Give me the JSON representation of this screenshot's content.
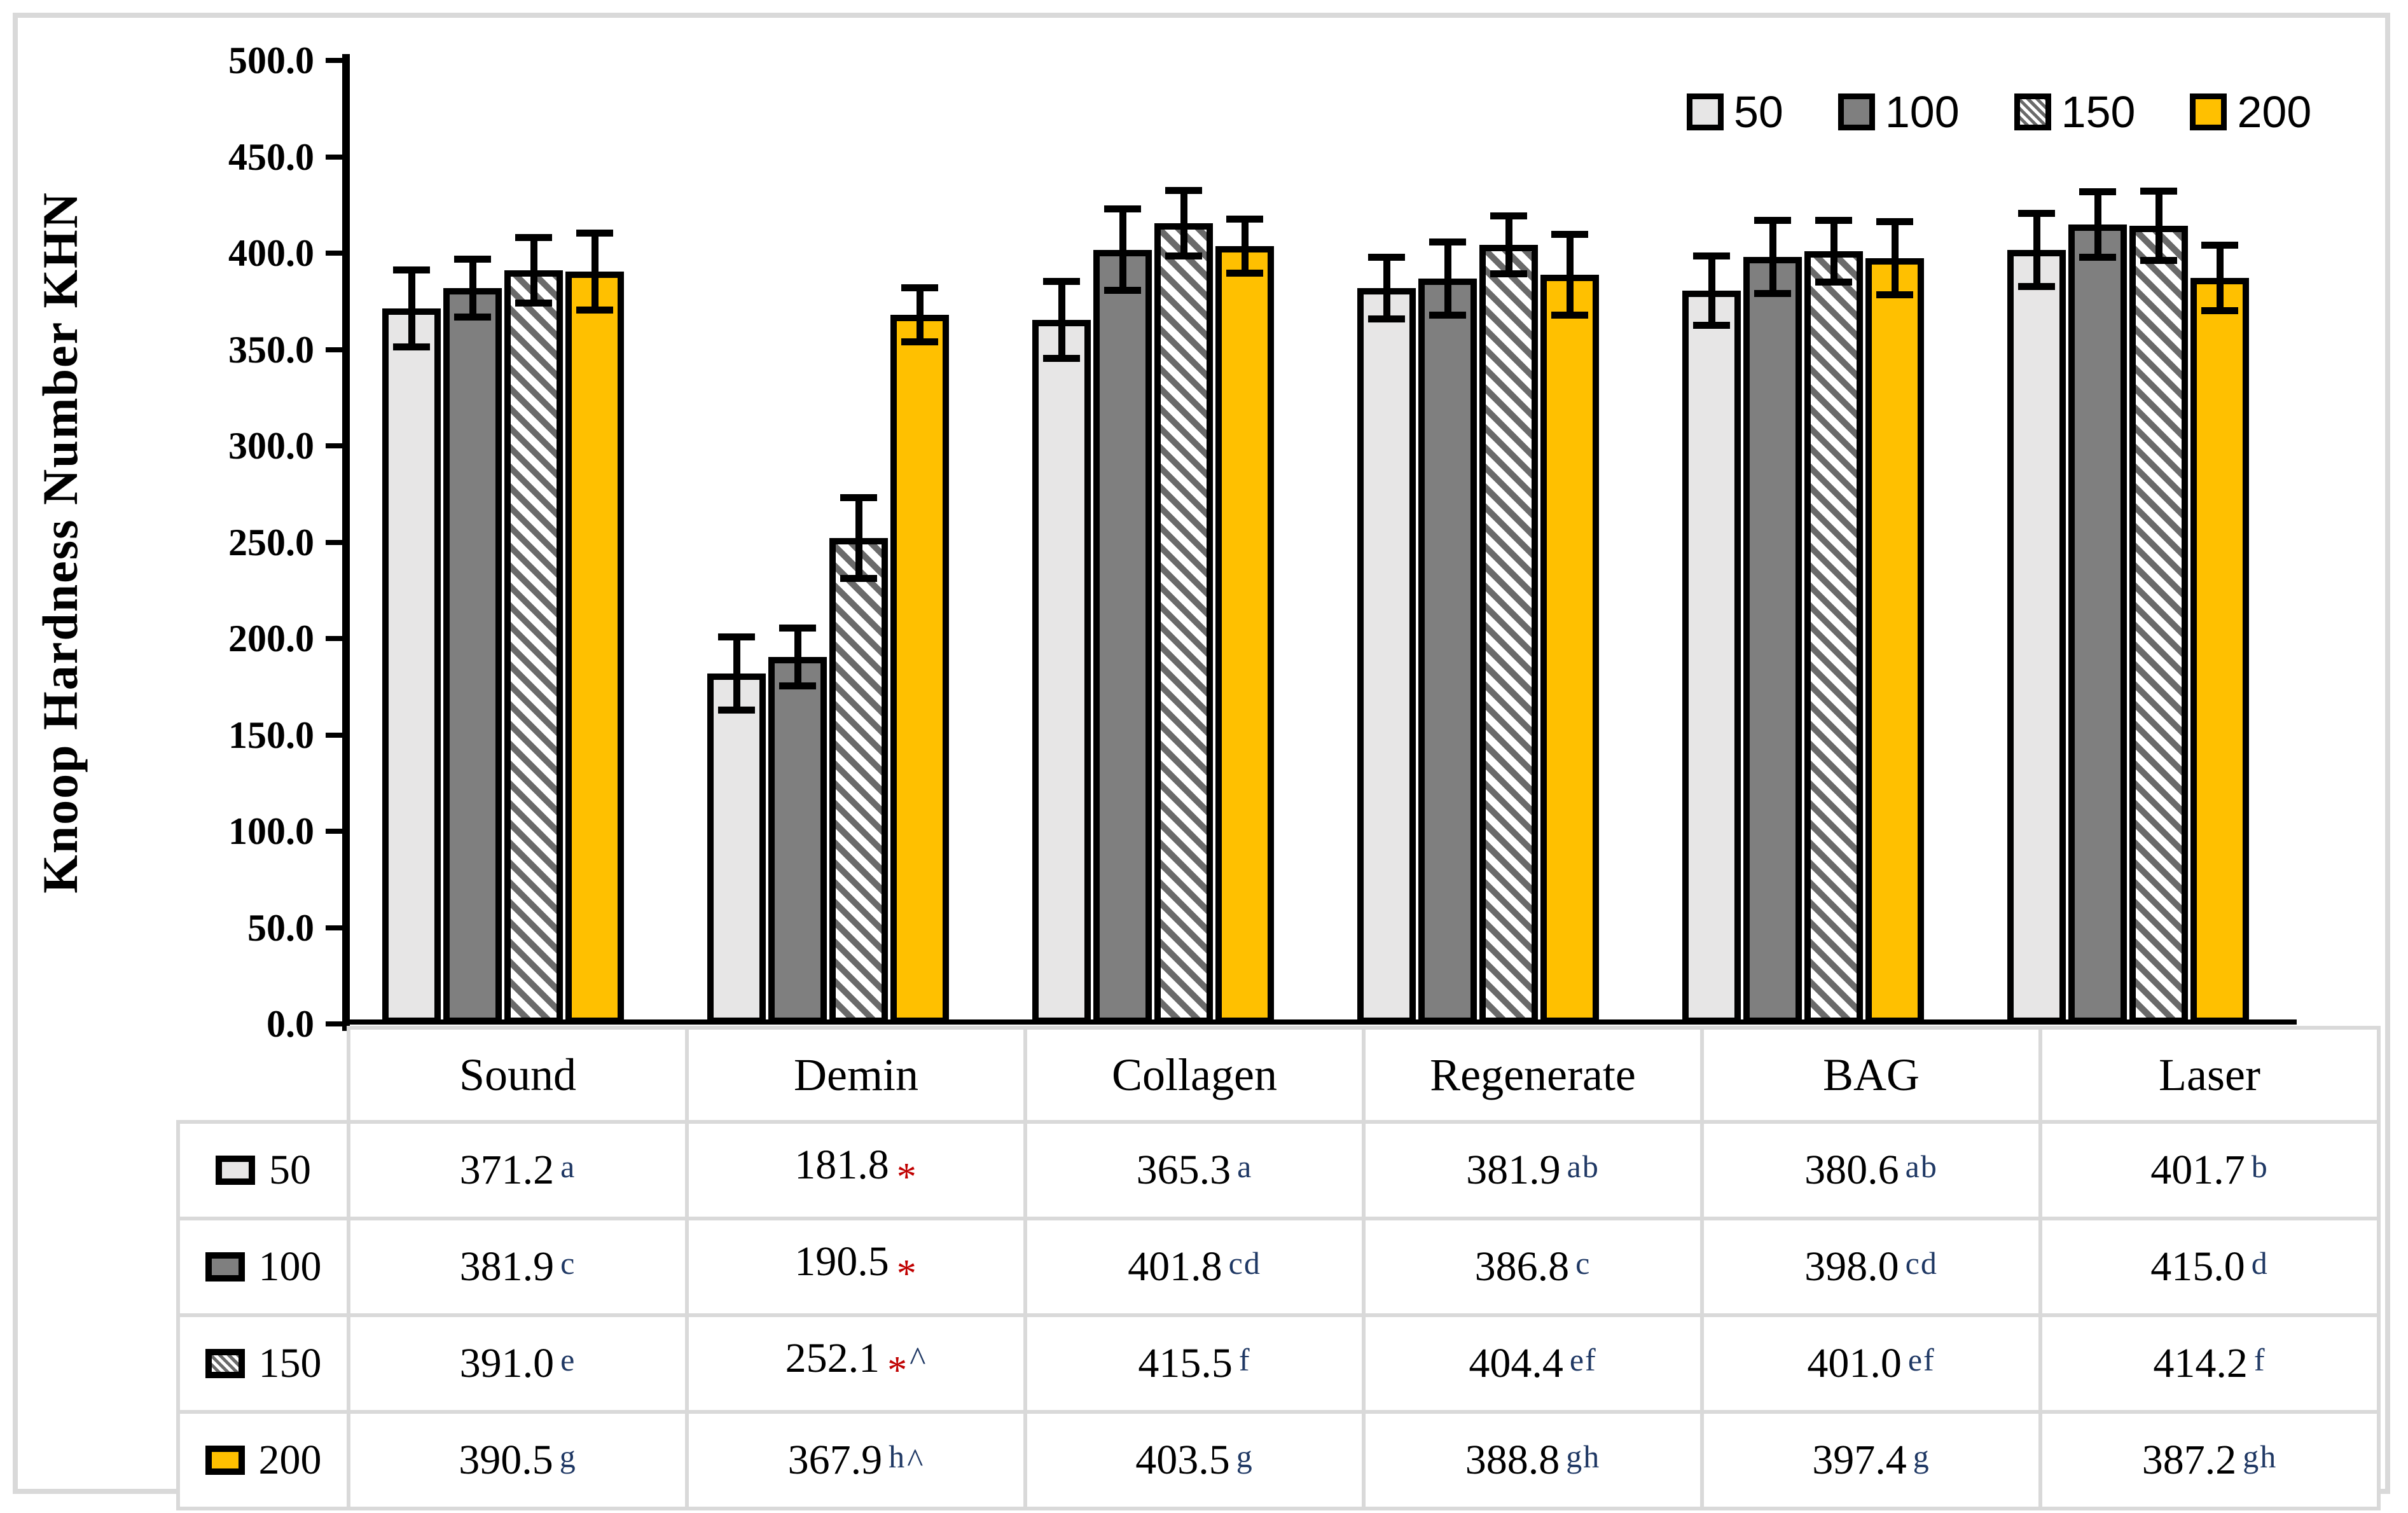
{
  "figure": {
    "kind": "clustered-bar-chart-with-data-table"
  },
  "colors": {
    "series_50": "#E7E6E6",
    "series_100": "#7F7F7F",
    "series_150_stripe": "#6A6A6A",
    "series_150_bg": "#FFFFFF",
    "series_200": "#FFC000",
    "grid": "#D9D9D9",
    "axis": "#000000",
    "navy": "#1F3864",
    "red": "#C00000"
  },
  "y_axis": {
    "title": "Knoop Hardness Number KHN",
    "tick_labels": [
      "500.0",
      "450.0",
      "400.0",
      "350.0",
      "300.0",
      "250.0",
      "200.0",
      "150.0",
      "100.0",
      "50.0",
      "0.0"
    ],
    "min": 0,
    "max": 500,
    "step": 50
  },
  "legend": {
    "position": "top-right",
    "items": [
      "50",
      "100",
      "150",
      "200"
    ]
  },
  "chart_data": {
    "type": "bar",
    "title": "",
    "xlabel": "",
    "ylabel": "Knoop Hardness Number KHN",
    "ylim": [
      0,
      500
    ],
    "ytick_step": 50,
    "grid": "off",
    "legend_position": "top-right",
    "categories": [
      "Sound",
      "Demin",
      "Collagen",
      "Regenerate",
      "BAG",
      "Laser"
    ],
    "series": [
      {
        "name": "50",
        "style": "light-gray",
        "values": [
          371.2,
          181.8,
          365.3,
          381.9,
          380.6,
          401.7
        ],
        "errors_est": [
          20,
          19,
          20,
          16,
          18,
          19
        ]
      },
      {
        "name": "100",
        "style": "dark-gray",
        "values": [
          381.9,
          190.5,
          401.8,
          386.8,
          398.0,
          415.0
        ],
        "errors_est": [
          15,
          15,
          21,
          19,
          19,
          17
        ]
      },
      {
        "name": "150",
        "style": "diagonal-hatch",
        "values": [
          391.0,
          252.1,
          415.5,
          404.4,
          401.0,
          414.2
        ],
        "errors_est": [
          17,
          21,
          17,
          15,
          16,
          18
        ]
      },
      {
        "name": "200",
        "style": "gold",
        "values": [
          390.5,
          367.9,
          403.5,
          388.8,
          397.4,
          387.2
        ],
        "errors_est": [
          20,
          14,
          14,
          21,
          19,
          17
        ]
      }
    ]
  },
  "table": {
    "column_headers": [
      "Sound",
      "Demin",
      "Collagen",
      "Regenerate",
      "BAG",
      "Laser"
    ],
    "rows": [
      {
        "label": "50",
        "cells": [
          {
            "value": "371.2",
            "marks": [
              {
                "text": "a",
                "color": "navy"
              }
            ]
          },
          {
            "value": "181.8",
            "marks": [
              {
                "text": "*",
                "color": "red"
              }
            ]
          },
          {
            "value": "365.3",
            "marks": [
              {
                "text": "a",
                "color": "navy"
              }
            ]
          },
          {
            "value": "381.9",
            "marks": [
              {
                "text": "ab",
                "color": "navy"
              }
            ]
          },
          {
            "value": "380.6",
            "marks": [
              {
                "text": "ab",
                "color": "navy"
              }
            ]
          },
          {
            "value": "401.7",
            "marks": [
              {
                "text": "b",
                "color": "navy"
              }
            ]
          }
        ]
      },
      {
        "label": "100",
        "cells": [
          {
            "value": "381.9",
            "marks": [
              {
                "text": "c",
                "color": "navy"
              }
            ]
          },
          {
            "value": "190.5",
            "marks": [
              {
                "text": "*",
                "color": "red"
              }
            ]
          },
          {
            "value": "401.8",
            "marks": [
              {
                "text": "cd",
                "color": "navy"
              }
            ]
          },
          {
            "value": "386.8",
            "marks": [
              {
                "text": "c",
                "color": "navy"
              }
            ]
          },
          {
            "value": "398.0",
            "marks": [
              {
                "text": "cd",
                "color": "navy"
              }
            ]
          },
          {
            "value": "415.0",
            "marks": [
              {
                "text": "d",
                "color": "navy"
              }
            ]
          }
        ]
      },
      {
        "label": "150",
        "cells": [
          {
            "value": "391.0",
            "marks": [
              {
                "text": "e",
                "color": "navy"
              }
            ]
          },
          {
            "value": "252.1",
            "marks": [
              {
                "text": "*",
                "color": "red"
              },
              {
                "text": "^",
                "color": "navy"
              }
            ]
          },
          {
            "value": "415.5",
            "marks": [
              {
                "text": "f",
                "color": "navy"
              }
            ]
          },
          {
            "value": "404.4",
            "marks": [
              {
                "text": "ef",
                "color": "navy"
              }
            ]
          },
          {
            "value": "401.0",
            "marks": [
              {
                "text": "ef",
                "color": "navy"
              }
            ]
          },
          {
            "value": "414.2",
            "marks": [
              {
                "text": "f",
                "color": "navy"
              }
            ]
          }
        ]
      },
      {
        "label": "200",
        "cells": [
          {
            "value": "390.5",
            "marks": [
              {
                "text": "g",
                "color": "navy"
              }
            ]
          },
          {
            "value": "367.9",
            "marks": [
              {
                "text": "h",
                "color": "navy"
              },
              {
                "text": "^",
                "color": "navy"
              }
            ]
          },
          {
            "value": "403.5",
            "marks": [
              {
                "text": "g",
                "color": "navy"
              }
            ]
          },
          {
            "value": "388.8",
            "marks": [
              {
                "text": "gh",
                "color": "navy"
              }
            ]
          },
          {
            "value": "397.4",
            "marks": [
              {
                "text": "g",
                "color": "navy"
              }
            ]
          },
          {
            "value": "387.2",
            "marks": [
              {
                "text": "gh",
                "color": "navy"
              }
            ]
          }
        ]
      }
    ]
  }
}
